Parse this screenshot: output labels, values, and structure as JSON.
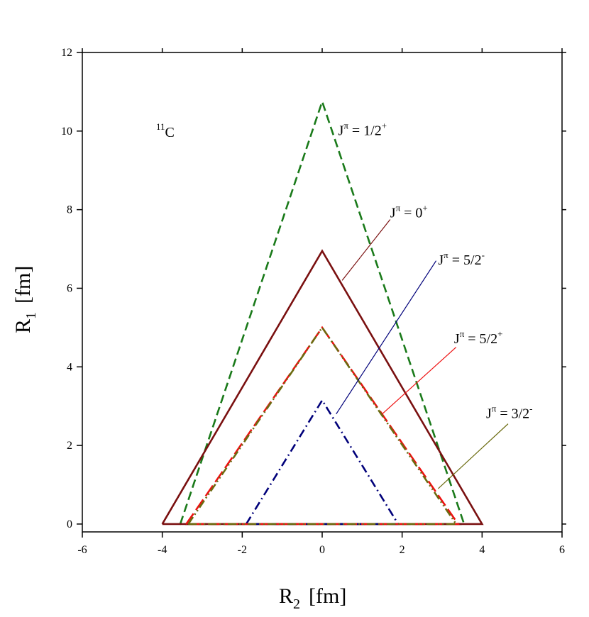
{
  "chart_data": {
    "type": "line",
    "xlabel": {
      "main": "R",
      "sub": "2",
      "unit": "[fm]"
    },
    "ylabel": {
      "main": "R",
      "sub": "1",
      "unit": "[fm]"
    },
    "xlim": [
      -6,
      6
    ],
    "ylim": [
      -0.2,
      12
    ],
    "xticks": [
      -6,
      -4,
      -2,
      0,
      2,
      4,
      6
    ],
    "yticks": [
      0,
      2,
      4,
      6,
      8,
      10,
      12
    ],
    "grid": false,
    "nucleus": {
      "mass": "11",
      "symbol": "C"
    },
    "series": [
      {
        "name": "J^π = 1/2^+",
        "jpi": "1/2",
        "parity": "+",
        "color": "#1a7a1a",
        "dash": "dashed",
        "x": [
          -3.55,
          0,
          3.55,
          -3.55
        ],
        "y": [
          0,
          10.75,
          0,
          0
        ]
      },
      {
        "name": "J^π = 0^+",
        "jpi": "0",
        "parity": "+",
        "color": "#7a1010",
        "dash": "solid",
        "x": [
          -4.0,
          0,
          4.0,
          -4.0
        ],
        "y": [
          0,
          6.95,
          0,
          0
        ]
      },
      {
        "name": "J^π = 5/2^-",
        "jpi": "5/2",
        "parity": "-",
        "color": "#00007a",
        "dash": "dashdot",
        "x": [
          -1.9,
          0,
          1.9,
          -1.9
        ],
        "y": [
          0,
          3.15,
          0,
          0
        ]
      },
      {
        "name": "J^π = 5/2^+",
        "jpi": "5/2",
        "parity": "+",
        "color": "#ee1111",
        "dash": "longdash",
        "x": [
          -3.4,
          0,
          3.4,
          -3.4
        ],
        "y": [
          0,
          5.0,
          0,
          0
        ]
      },
      {
        "name": "J^π = 3/2^-",
        "jpi": "3/2",
        "parity": "-",
        "color": "#6b6b10",
        "dash": "dashdotdot",
        "x": [
          -3.35,
          0,
          3.35,
          -3.35
        ],
        "y": [
          0,
          5.0,
          0,
          0
        ]
      }
    ],
    "annotations": [
      {
        "series": 0,
        "text_x": 0.4,
        "text_y": 9.9
      },
      {
        "series": 1,
        "text_x": 1.7,
        "text_y": 7.8,
        "line": [
          [
            1.7,
            7.75
          ],
          [
            0.5,
            6.2
          ]
        ]
      },
      {
        "series": 2,
        "text_x": 2.9,
        "text_y": 6.6,
        "line": [
          [
            2.85,
            6.7
          ],
          [
            0.35,
            2.8
          ]
        ]
      },
      {
        "series": 3,
        "text_x": 3.3,
        "text_y": 4.6,
        "line": [
          [
            3.35,
            4.5
          ],
          [
            1.5,
            2.8
          ]
        ]
      },
      {
        "series": 4,
        "text_x": 4.1,
        "text_y": 2.7,
        "line": [
          [
            4.65,
            2.55
          ],
          [
            2.9,
            0.9
          ]
        ]
      }
    ]
  }
}
